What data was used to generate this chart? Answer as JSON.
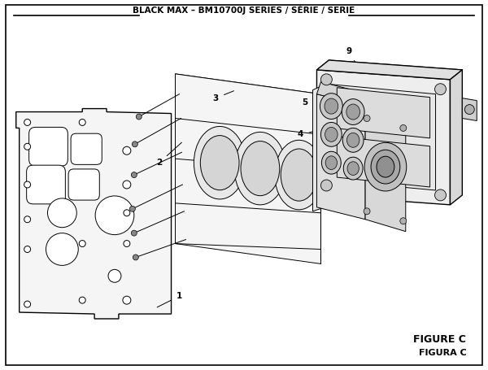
{
  "title": "BLACK MAX – BM10700J SERIES / SÉRIE / SERIE",
  "figure_label": "FIGURE C",
  "figura_label": "FIGURA C",
  "bg_color": "#ffffff",
  "line_color": "#000000",
  "text_color": "#000000"
}
